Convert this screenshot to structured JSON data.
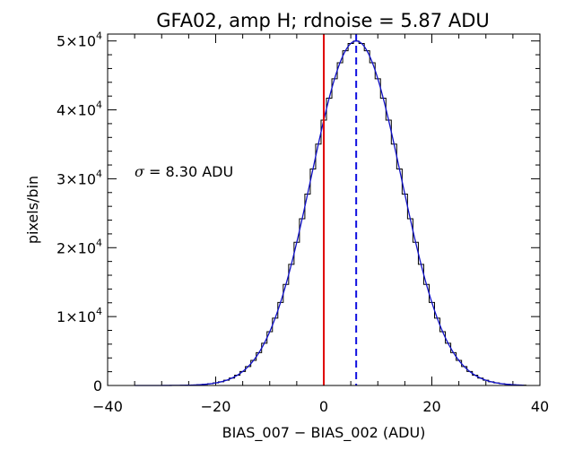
{
  "chart_data": {
    "type": "histogram",
    "title": "GFA02, amp H; rdnoise = 5.87 ADU",
    "xlabel": "BIAS_007 − BIAS_002 (ADU)",
    "ylabel": "pixels/bin",
    "xlim": [
      -40,
      40
    ],
    "ylim": [
      0,
      51000
    ],
    "x_ticks": [
      -40,
      -20,
      0,
      20,
      40
    ],
    "x_tick_labels": [
      "−40",
      "−20",
      "0",
      "20",
      "40"
    ],
    "y_ticks": [
      0,
      10000,
      20000,
      30000,
      40000,
      50000
    ],
    "y_tick_labels": [
      {
        "mantissa": "0",
        "exp": ""
      },
      {
        "mantissa": "1×10",
        "exp": "4"
      },
      {
        "mantissa": "2×10",
        "exp": "4"
      },
      {
        "mantissa": "3×10",
        "exp": "4"
      },
      {
        "mantissa": "4×10",
        "exp": "4"
      },
      {
        "mantissa": "5×10",
        "exp": "4"
      }
    ],
    "annotation": {
      "sigma_symbol": "σ",
      "text": " = 8.30 ADU"
    },
    "histogram": {
      "bin_width": 1,
      "mean": 6,
      "sigma": 8.3,
      "peak": 50000,
      "range": [
        -35,
        37
      ],
      "color": "#000000"
    },
    "gaussian_fit": {
      "mean": 6,
      "sigma": 8.3,
      "peak": 50000,
      "range": [
        -35,
        37
      ],
      "color": "#1010c8"
    },
    "vlines": [
      {
        "x": 0,
        "color": "#e00000",
        "style": "solid"
      },
      {
        "x": 6,
        "color": "#1010e0",
        "style": "dashed"
      }
    ]
  }
}
